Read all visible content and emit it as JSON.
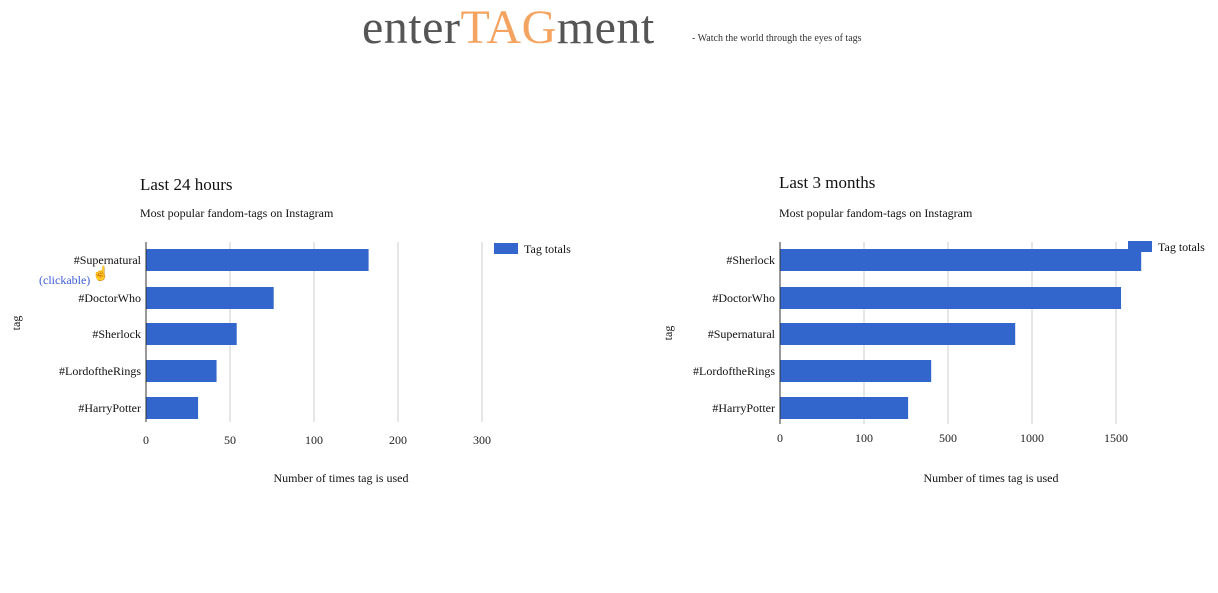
{
  "header": {
    "logo_part1": "enter",
    "logo_part2": "TAG",
    "logo_part3": "ment",
    "tagline": "- Watch the world through the eyes of tags"
  },
  "colors": {
    "bar": "#3366cc",
    "grid": "#cccccc",
    "accent": "#f4a460",
    "link": "#3c5bd6"
  },
  "chart_data": [
    {
      "type": "bar",
      "orientation": "horizontal",
      "title": "Last 24 hours",
      "subtitle": "Most popular fandom-tags on Instagram",
      "xlabel": "Number of times tag is used",
      "ylabel": "tag",
      "categories": [
        "#Supernatural",
        "#DoctorWho",
        "#Sherlock",
        "#LordoftheRings",
        "#HarryPotter"
      ],
      "series": [
        {
          "name": "Tag totals",
          "values": [
            165,
            76,
            54,
            42,
            31
          ]
        }
      ],
      "xticks": [
        0,
        50,
        100,
        200,
        300
      ],
      "grid": true,
      "legend": "right",
      "annotation": "(clickable)"
    },
    {
      "type": "bar",
      "orientation": "horizontal",
      "title": "Last 3 months",
      "subtitle": "Most popular fandom-tags on Instagram",
      "xlabel": "Number of times tag is used",
      "ylabel": "tag",
      "categories": [
        "#Sherlock",
        "#DoctorWho",
        "#Supernatural",
        "#LordoftheRings",
        "#HarryPotter"
      ],
      "series": [
        {
          "name": "Tag totals",
          "values": [
            1650,
            1530,
            900,
            420,
            310
          ]
        }
      ],
      "xticks": [
        0,
        100,
        500,
        1000,
        1500
      ],
      "grid": true,
      "legend": "right"
    }
  ]
}
